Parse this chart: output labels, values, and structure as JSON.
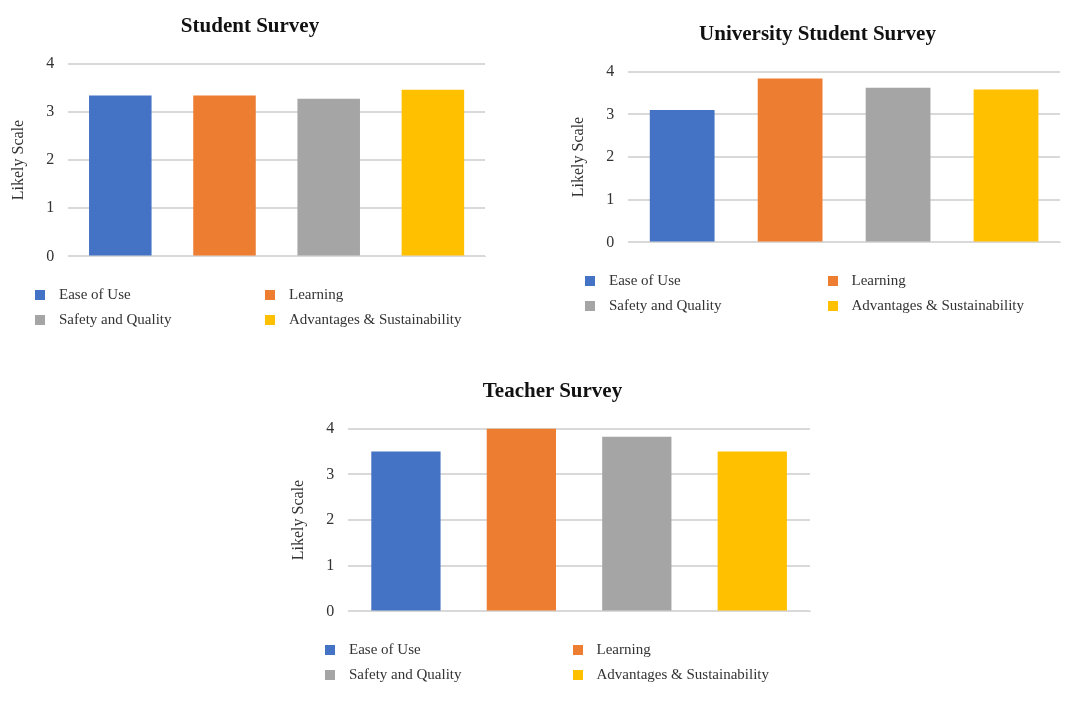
{
  "chart_data": [
    {
      "type": "bar",
      "title": "Student Survey",
      "ylabel": "Likely Scale",
      "categories": [
        null,
        null,
        null,
        null
      ],
      "series": [
        {
          "name": "Ease of Use",
          "color": "#4472c4",
          "values": [
            3.34,
            null,
            null,
            null
          ]
        },
        {
          "name": "Learning",
          "color": "#ed7d31",
          "values": [
            null,
            3.34,
            null,
            null
          ]
        },
        {
          "name": "Safety and Quality",
          "color": "#a5a5a5",
          "values": [
            null,
            null,
            3.27,
            null
          ]
        },
        {
          "name": "Advantages & Sustainability",
          "color": "#ffc000",
          "values": [
            null,
            null,
            null,
            3.46
          ]
        }
      ],
      "ylim": [
        0,
        4
      ],
      "yticks": [
        0,
        1,
        2,
        3,
        4
      ],
      "grid": "y",
      "legend": "bottom"
    },
    {
      "type": "bar",
      "title": "University  Student  Survey",
      "ylabel": "Likely Scale",
      "categories": [
        null,
        null,
        null,
        null
      ],
      "series": [
        {
          "name": "Ease of Use",
          "color": "#4472c4",
          "values": [
            3.1,
            null,
            null,
            null
          ]
        },
        {
          "name": "Learning",
          "color": "#ed7d31",
          "values": [
            null,
            3.84,
            null,
            null
          ]
        },
        {
          "name": "Safety and Quality",
          "color": "#a5a5a5",
          "values": [
            null,
            null,
            3.62,
            null
          ]
        },
        {
          "name": "Advantages & Sustainability",
          "color": "#ffc000",
          "values": [
            null,
            null,
            null,
            3.58
          ]
        }
      ],
      "ylim": [
        0,
        4
      ],
      "yticks": [
        0,
        1,
        2,
        3,
        4
      ],
      "grid": "y",
      "legend": "bottom"
    },
    {
      "type": "bar",
      "title": "Teacher Survey",
      "ylabel": "Likely Scale",
      "categories": [
        null,
        null,
        null,
        null
      ],
      "series": [
        {
          "name": "Ease of Use",
          "color": "#4472c4",
          "values": [
            3.5,
            null,
            null,
            null
          ]
        },
        {
          "name": "Learning",
          "color": "#ed7d31",
          "values": [
            null,
            4.0,
            null,
            null
          ]
        },
        {
          "name": "Safety and Quality",
          "color": "#a5a5a5",
          "values": [
            null,
            null,
            3.82,
            null
          ]
        },
        {
          "name": "Advantages & Sustainability",
          "color": "#ffc000",
          "values": [
            null,
            null,
            null,
            3.5
          ]
        }
      ],
      "ylim": [
        0,
        4
      ],
      "yticks": [
        0,
        1,
        2,
        3,
        4
      ],
      "grid": "y",
      "legend": "bottom"
    }
  ]
}
